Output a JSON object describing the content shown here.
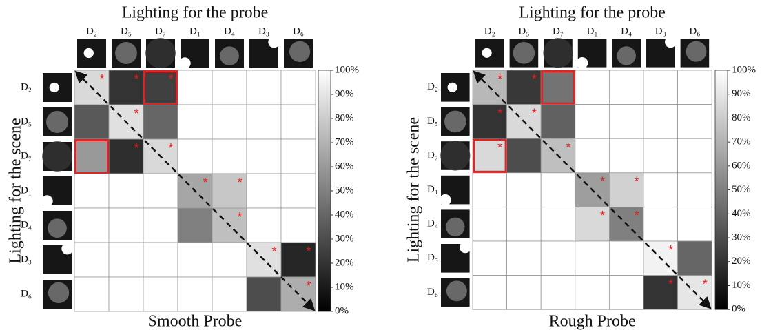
{
  "chart_data": [
    {
      "type": "heatmap",
      "title": "Lighting for the probe",
      "y_label": "Lighting for the scene",
      "x_label": "Smooth Probe",
      "x_categories": [
        "D₂",
        "D₅",
        "D₇",
        "D₁",
        "D₄",
        "D₃",
        "D₆"
      ],
      "y_categories": [
        "D₂",
        "D₅",
        "D₇",
        "D₁",
        "D₄",
        "D₃",
        "D₆"
      ],
      "values": [
        [
          85,
          20,
          25,
          null,
          null,
          null,
          null
        ],
        [
          35,
          88,
          40,
          null,
          null,
          null,
          null
        ],
        [
          60,
          18,
          85,
          null,
          null,
          null,
          null
        ],
        [
          null,
          null,
          null,
          65,
          78,
          null,
          null
        ],
        [
          null,
          null,
          null,
          50,
          75,
          null,
          null
        ],
        [
          null,
          null,
          null,
          null,
          null,
          88,
          15
        ],
        [
          null,
          null,
          null,
          null,
          null,
          30,
          68
        ]
      ],
      "clim": [
        0,
        100
      ],
      "cticks": [
        {
          "value": 0,
          "label": "0%"
        },
        {
          "value": 10,
          "label": "10%"
        },
        {
          "value": 20,
          "label": "20%"
        },
        {
          "value": 30,
          "label": "30%"
        },
        {
          "value": 40,
          "label": "40%"
        },
        {
          "value": 50,
          "label": "50%"
        },
        {
          "value": 60,
          "label": "60%"
        },
        {
          "value": 70,
          "label": "70%"
        },
        {
          "value": 80,
          "label": "80%"
        },
        {
          "value": 90,
          "label": "90%"
        },
        {
          "value": 100,
          "label": "100%"
        }
      ],
      "marker": "*",
      "marked_cells": [
        [
          0,
          0
        ],
        [
          0,
          1
        ],
        [
          0,
          2
        ],
        [
          1,
          1
        ],
        [
          2,
          1
        ],
        [
          2,
          2
        ],
        [
          3,
          3
        ],
        [
          3,
          4
        ],
        [
          4,
          4
        ],
        [
          5,
          5
        ],
        [
          5,
          6
        ],
        [
          6,
          6
        ]
      ],
      "boxed_cells": [
        [
          0,
          2
        ],
        [
          2,
          0
        ]
      ],
      "box_color": "#d62828"
    },
    {
      "type": "heatmap",
      "title": "Lighting for the probe",
      "y_label": "Lighting for the scene",
      "x_label": "Rough Probe",
      "x_categories": [
        "D₂",
        "D₅",
        "D₇",
        "D₁",
        "D₄",
        "D₃",
        "D₆"
      ],
      "y_categories": [
        "D₂",
        "D₅",
        "D₇",
        "D₁",
        "D₄",
        "D₃",
        "D₆"
      ],
      "values": [
        [
          72,
          22,
          45,
          null,
          null,
          null,
          null
        ],
        [
          20,
          85,
          38,
          null,
          null,
          null,
          null
        ],
        [
          85,
          30,
          75,
          null,
          null,
          null,
          null
        ],
        [
          null,
          null,
          null,
          62,
          82,
          null,
          null
        ],
        [
          null,
          null,
          null,
          85,
          50,
          null,
          null
        ],
        [
          null,
          null,
          null,
          null,
          null,
          95,
          40
        ],
        [
          null,
          null,
          null,
          null,
          null,
          20,
          90
        ]
      ],
      "clim": [
        0,
        100
      ],
      "cticks": [
        {
          "value": 0,
          "label": "0%"
        },
        {
          "value": 10,
          "label": "10%"
        },
        {
          "value": 20,
          "label": "20%"
        },
        {
          "value": 30,
          "label": "30%"
        },
        {
          "value": 40,
          "label": "40%"
        },
        {
          "value": 50,
          "label": "50%"
        },
        {
          "value": 60,
          "label": "60%"
        },
        {
          "value": 70,
          "label": "70%"
        },
        {
          "value": 80,
          "label": "80%"
        },
        {
          "value": 90,
          "label": "90%"
        },
        {
          "value": 100,
          "label": "100%"
        }
      ],
      "marker": "*",
      "marked_cells": [
        [
          0,
          0
        ],
        [
          0,
          1
        ],
        [
          1,
          0
        ],
        [
          1,
          1
        ],
        [
          2,
          0
        ],
        [
          2,
          2
        ],
        [
          3,
          3
        ],
        [
          3,
          4
        ],
        [
          4,
          3
        ],
        [
          4,
          4
        ],
        [
          5,
          5
        ],
        [
          6,
          5
        ],
        [
          6,
          6
        ]
      ],
      "boxed_cells": [
        [
          0,
          2
        ],
        [
          2,
          0
        ]
      ],
      "box_color": "#d62828"
    }
  ]
}
